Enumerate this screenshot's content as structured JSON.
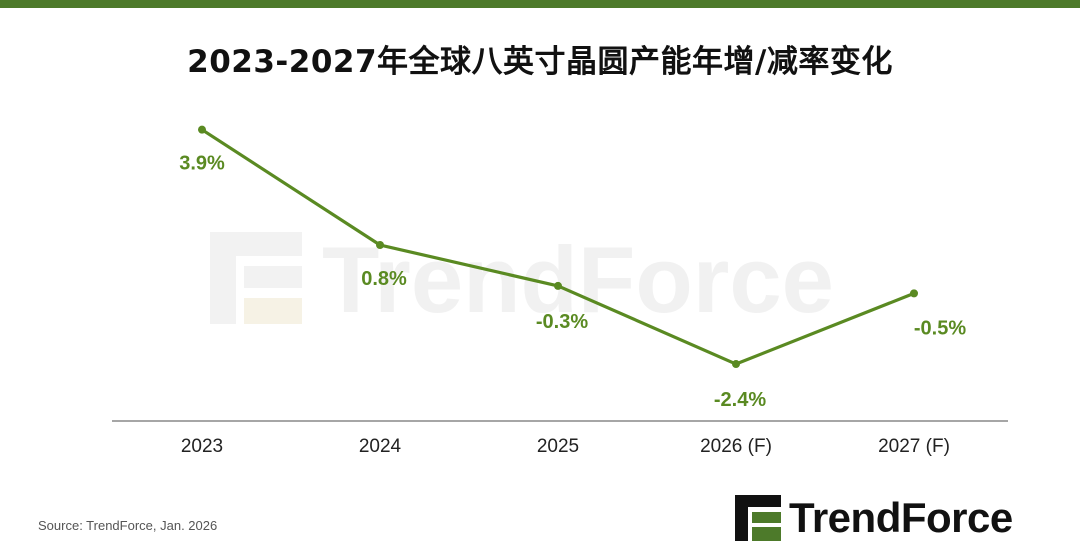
{
  "header": {
    "title": "2023-2027年全球八英寸晶圆产能年增/减率变化"
  },
  "colors": {
    "accent": "#4d7a2a",
    "line": "#5a8a22",
    "label": "#5a8a22",
    "watermark": "#e6e6e6",
    "axis": "#888888"
  },
  "chart_data": {
    "type": "line",
    "title": "2023-2027年全球八英寸晶圆产能年增/减率变化",
    "categories": [
      "2023",
      "2024",
      "2025",
      "2026 (F)",
      "2027 (F)"
    ],
    "series": [
      {
        "values": [
          3.9,
          0.8,
          -0.3,
          -2.4,
          -0.5
        ],
        "labels": [
          "3.9%",
          "0.8%",
          "-0.3%",
          "-2.4%",
          "-0.5%"
        ]
      }
    ],
    "xlabel": "",
    "ylabel": "",
    "grid": false,
    "legend": "none"
  },
  "footer": {
    "source": "Source: TrendForce, Jan. 2026",
    "logo_text": "TrendForce",
    "watermark_text": "TrendForce"
  }
}
